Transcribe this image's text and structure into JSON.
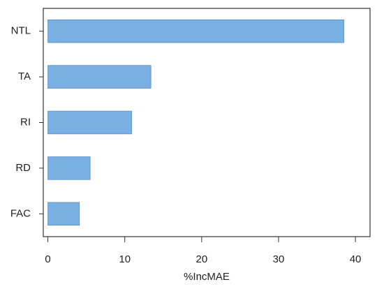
{
  "chart_data": {
    "type": "barh",
    "x_label": "%IncMAE",
    "categories": [
      "NTL",
      "TA",
      "RI",
      "RD",
      "FAC"
    ],
    "values": [
      38.5,
      13.4,
      10.9,
      5.5,
      4.1
    ],
    "color": "#7aafe3",
    "xlim": [
      -0.6,
      41.9
    ],
    "xticks": [
      0,
      10,
      20,
      30,
      40
    ]
  }
}
